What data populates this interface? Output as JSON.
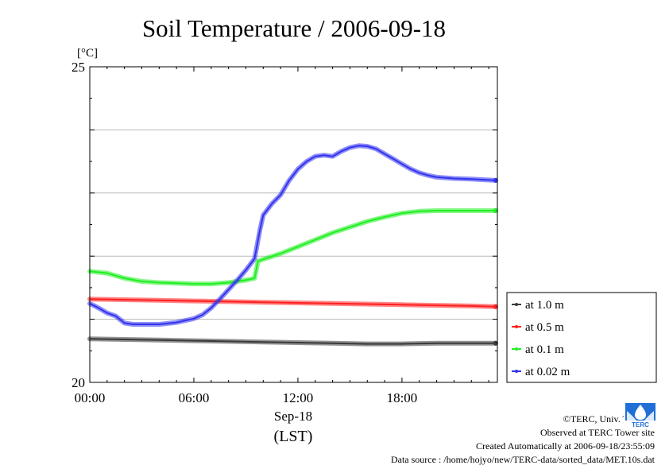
{
  "chart_data": {
    "type": "line",
    "title": "Soil Temperature / 2006-09-18",
    "unit_label": "[°C]",
    "ylim": [
      20,
      25
    ],
    "yticks": [
      "25",
      "20"
    ],
    "xlim_hours": [
      0,
      23.5
    ],
    "xticks": [
      {
        "hour": 0,
        "label": "00:00"
      },
      {
        "hour": 6,
        "label": "06:00"
      },
      {
        "hour": 12,
        "label": "12:00"
      },
      {
        "hour": 18,
        "label": "18:00"
      }
    ],
    "x_sublabel": "Sep-18",
    "xlabel": "(LST)",
    "grid": true,
    "legend_position": "right",
    "series": [
      {
        "name": "at 1.0 m",
        "color": "#3a3a3a",
        "points": [
          [
            0,
            20.69
          ],
          [
            2,
            20.68
          ],
          [
            4,
            20.67
          ],
          [
            6,
            20.66
          ],
          [
            8,
            20.65
          ],
          [
            10,
            20.64
          ],
          [
            12,
            20.63
          ],
          [
            14,
            20.62
          ],
          [
            16,
            20.61
          ],
          [
            18,
            20.61
          ],
          [
            20,
            20.62
          ],
          [
            22,
            20.62
          ],
          [
            23.4,
            20.62
          ]
        ]
      },
      {
        "name": "at 0.5 m",
        "color": "#ff2020",
        "points": [
          [
            0,
            21.32
          ],
          [
            2,
            21.31
          ],
          [
            4,
            21.3
          ],
          [
            6,
            21.29
          ],
          [
            8,
            21.28
          ],
          [
            10,
            21.27
          ],
          [
            12,
            21.26
          ],
          [
            14,
            21.25
          ],
          [
            16,
            21.24
          ],
          [
            18,
            21.23
          ],
          [
            20,
            21.22
          ],
          [
            22,
            21.21
          ],
          [
            23.4,
            21.2
          ]
        ]
      },
      {
        "name": "at 0.1 m",
        "color": "#22ee22",
        "points": [
          [
            0,
            21.76
          ],
          [
            1,
            21.73
          ],
          [
            2,
            21.65
          ],
          [
            3,
            21.6
          ],
          [
            4,
            21.58
          ],
          [
            5,
            21.57
          ],
          [
            6,
            21.56
          ],
          [
            7,
            21.56
          ],
          [
            8,
            21.58
          ],
          [
            9,
            21.62
          ],
          [
            9.5,
            21.65
          ],
          [
            9.7,
            21.92
          ],
          [
            10,
            21.95
          ],
          [
            11,
            22.04
          ],
          [
            12,
            22.15
          ],
          [
            13,
            22.26
          ],
          [
            14,
            22.37
          ],
          [
            15,
            22.46
          ],
          [
            16,
            22.55
          ],
          [
            17,
            22.62
          ],
          [
            18,
            22.68
          ],
          [
            19,
            22.71
          ],
          [
            20,
            22.72
          ],
          [
            21,
            22.72
          ],
          [
            22,
            22.72
          ],
          [
            23.4,
            22.72
          ]
        ]
      },
      {
        "name": "at 0.02 m",
        "color": "#3333ee",
        "points": [
          [
            0,
            21.25
          ],
          [
            0.5,
            21.18
          ],
          [
            1,
            21.1
          ],
          [
            1.5,
            21.05
          ],
          [
            2,
            20.94
          ],
          [
            2.5,
            20.92
          ],
          [
            3,
            20.92
          ],
          [
            4,
            20.92
          ],
          [
            5,
            20.95
          ],
          [
            6,
            21.01
          ],
          [
            6.5,
            21.07
          ],
          [
            7,
            21.18
          ],
          [
            7.5,
            21.32
          ],
          [
            8,
            21.47
          ],
          [
            8.5,
            21.62
          ],
          [
            9,
            21.78
          ],
          [
            9.5,
            21.96
          ],
          [
            9.8,
            22.4
          ],
          [
            10,
            22.65
          ],
          [
            10.5,
            22.83
          ],
          [
            11,
            22.97
          ],
          [
            11.5,
            23.2
          ],
          [
            12,
            23.38
          ],
          [
            12.5,
            23.5
          ],
          [
            13,
            23.58
          ],
          [
            13.5,
            23.6
          ],
          [
            14,
            23.58
          ],
          [
            14.5,
            23.66
          ],
          [
            15,
            23.72
          ],
          [
            15.5,
            23.75
          ],
          [
            16,
            23.74
          ],
          [
            16.5,
            23.7
          ],
          [
            17,
            23.62
          ],
          [
            17.5,
            23.54
          ],
          [
            18,
            23.46
          ],
          [
            18.5,
            23.38
          ],
          [
            19,
            23.32
          ],
          [
            19.5,
            23.28
          ],
          [
            20,
            23.25
          ],
          [
            21,
            23.23
          ],
          [
            22,
            23.22
          ],
          [
            23.4,
            23.2
          ]
        ]
      }
    ]
  },
  "footer": {
    "copyright": "©TERC, Univ. Tsukuba",
    "observed": "Observed at TERC Tower site",
    "created": "Created Automatically at 2006-09-18/23:55:09",
    "source": "Data source : /home/hojyo/new/TERC-data/sorted_data/MET.10s.dat",
    "logo_text": "TERC"
  }
}
